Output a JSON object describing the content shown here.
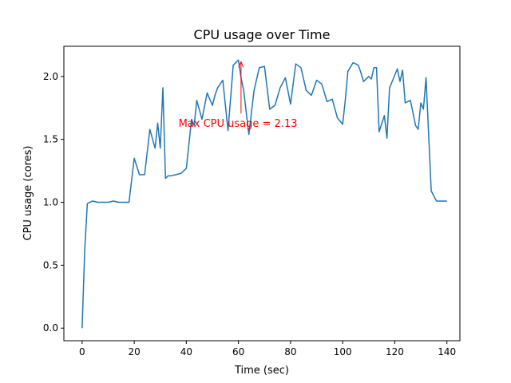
{
  "chart_data": {
    "type": "line",
    "title": "CPU usage over Time",
    "xlabel": "Time (sec)",
    "ylabel": "CPU usage (cores)",
    "xlim": [
      -7,
      145
    ],
    "ylim": [
      -0.1,
      2.24
    ],
    "xticks": [
      0,
      20,
      40,
      60,
      80,
      100,
      120,
      140
    ],
    "yticks": [
      0.0,
      0.5,
      1.0,
      1.5,
      2.0
    ],
    "xtick_labels": [
      "0",
      "20",
      "40",
      "60",
      "80",
      "100",
      "120",
      "140"
    ],
    "ytick_labels": [
      "0.0",
      "0.5",
      "1.0",
      "1.5",
      "2.0"
    ],
    "grid": false,
    "series_color": "#1f77b4",
    "x": [
      0,
      1,
      2,
      4,
      6,
      8,
      10,
      12,
      14,
      16,
      18,
      20,
      22,
      24,
      26,
      28,
      29,
      30,
      31,
      32,
      33,
      34,
      36,
      38,
      40,
      42,
      43,
      44,
      46,
      48,
      50,
      51,
      52,
      54,
      56,
      58,
      60,
      61,
      62,
      64,
      66,
      68,
      70,
      72,
      74,
      76,
      78,
      80,
      82,
      84,
      86,
      87,
      88,
      90,
      92,
      94,
      96,
      98,
      100,
      101,
      102,
      104,
      106,
      107,
      108,
      110,
      111,
      112,
      113,
      114,
      116,
      117,
      118,
      120,
      121,
      122,
      123,
      124,
      126,
      128,
      129,
      130,
      131,
      132,
      134,
      136,
      138,
      140
    ],
    "y": [
      0.0,
      0.62,
      0.99,
      1.01,
      1.0,
      1.0,
      1.0,
      1.01,
      1.0,
      1.0,
      1.0,
      1.35,
      1.22,
      1.22,
      1.58,
      1.43,
      1.63,
      1.43,
      1.91,
      1.19,
      1.21,
      1.21,
      1.22,
      1.23,
      1.27,
      1.66,
      1.61,
      1.81,
      1.66,
      1.87,
      1.77,
      1.85,
      1.91,
      1.97,
      1.57,
      2.09,
      2.13,
      1.99,
      1.89,
      1.54,
      1.89,
      2.07,
      2.08,
      1.74,
      1.77,
      1.91,
      1.99,
      1.78,
      2.1,
      2.07,
      1.89,
      1.87,
      1.85,
      1.97,
      1.94,
      1.8,
      1.82,
      1.67,
      1.62,
      1.81,
      2.04,
      2.11,
      2.09,
      2.03,
      1.96,
      2.0,
      1.98,
      2.07,
      2.07,
      1.56,
      1.69,
      1.51,
      1.91,
      2.01,
      2.06,
      1.96,
      2.05,
      1.79,
      1.81,
      1.61,
      1.58,
      1.79,
      1.74,
      1.99,
      1.09,
      1.01,
      1.01,
      1.01
    ],
    "annotation": {
      "text": "Max CPU usage = 2.13",
      "color": "#ff0000",
      "point": [
        61,
        2.13
      ],
      "text_anchor": [
        37,
        1.63
      ]
    }
  }
}
